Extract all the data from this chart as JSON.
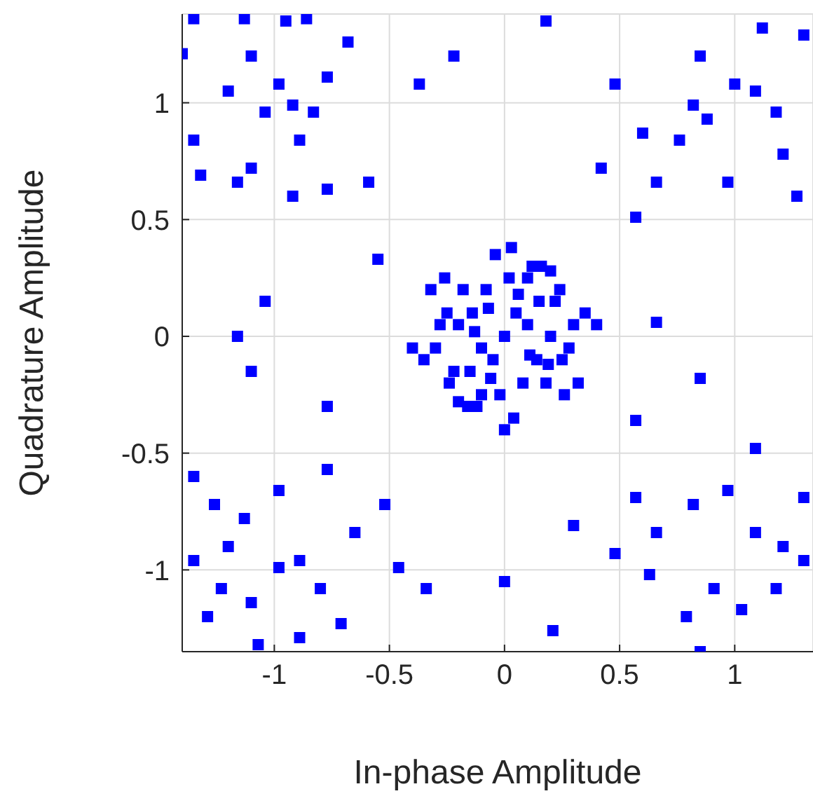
{
  "chart_data": {
    "type": "scatter",
    "xlabel": "In-phase Amplitude",
    "ylabel": "Quadrature Amplitude",
    "xlim": [
      -1.4,
      1.34
    ],
    "ylim": [
      -1.35,
      1.38
    ],
    "xticks": [
      -1,
      -0.5,
      0,
      0.5,
      1
    ],
    "yticks": [
      -1,
      -0.5,
      0,
      0.5,
      1
    ],
    "grid": true,
    "marker": "square",
    "series": [
      {
        "color": "#0000ff",
        "x": [
          -1.35,
          -1.13,
          -0.95,
          -0.86,
          -1.4,
          -1.2,
          -1.1,
          -0.98,
          -0.92,
          -0.83,
          -0.77,
          -0.68,
          -0.89,
          -1.32,
          -1.16,
          -1.1,
          -0.92,
          -0.77,
          -1.35,
          -1.04,
          1.0,
          1.09,
          1.18,
          0.88,
          0.76,
          0.82,
          1.12,
          1.3,
          0.6,
          0.66,
          0.97,
          1.21,
          0.48,
          1.27,
          0.42,
          0.85,
          -1.35,
          -1.23,
          -1.1,
          -0.98,
          -0.89,
          -0.8,
          -1.29,
          -1.07,
          -0.89,
          -0.71,
          -1.26,
          -1.13,
          -0.77,
          -0.98,
          -1.35,
          -0.65,
          -1.2,
          0.82,
          0.97,
          1.09,
          1.21,
          1.3,
          0.91,
          0.79,
          1.03,
          1.18,
          0.85,
          0.63,
          0.66,
          1.09,
          0.48,
          0.3,
          1.3,
          -0.55,
          -1.04,
          -1.16,
          -1.1,
          -0.77,
          -0.37,
          -0.22,
          0.18,
          -0.59,
          0.57,
          0.66,
          0.85,
          0.57,
          0.0,
          -0.34,
          0.21,
          -0.46,
          0.57,
          -0.52,
          0.0,
          0.05,
          -0.05,
          0.1,
          -0.1,
          0.15,
          -0.15,
          0.2,
          -0.2,
          0.25,
          -0.25,
          0.3,
          -0.3,
          0.02,
          -0.02,
          0.08,
          -0.08,
          0.12,
          -0.12,
          0.18,
          -0.18,
          0.22,
          -0.22,
          0.28,
          -0.28,
          0.35,
          -0.35,
          0.04,
          -0.04,
          0.1,
          -0.1,
          0.16,
          -0.16,
          0.24,
          -0.24,
          0.32,
          -0.32,
          0.06,
          -0.06,
          0.14,
          -0.14,
          0.2,
          -0.2,
          0.26,
          -0.26,
          0.4,
          -0.4,
          0.0,
          0.03,
          -0.07,
          0.11,
          -0.13,
          0.19
        ],
        "values": [
          1.36,
          1.36,
          1.35,
          1.36,
          1.21,
          1.05,
          1.2,
          1.08,
          0.99,
          0.96,
          1.11,
          1.26,
          0.84,
          0.69,
          0.66,
          0.72,
          0.6,
          0.63,
          0.84,
          0.96,
          1.08,
          1.05,
          0.96,
          0.93,
          0.84,
          0.99,
          1.32,
          1.29,
          0.87,
          0.66,
          0.66,
          0.78,
          1.08,
          0.6,
          0.72,
          1.2,
          -0.96,
          -1.08,
          -1.14,
          -0.99,
          -0.96,
          -1.08,
          -1.2,
          -1.32,
          -1.29,
          -1.23,
          -0.72,
          -0.78,
          -0.57,
          -0.66,
          -0.6,
          -0.84,
          -0.9,
          -0.72,
          -0.66,
          -0.84,
          -0.9,
          -0.69,
          -1.08,
          -1.2,
          -1.17,
          -1.08,
          -1.35,
          -1.02,
          -0.84,
          -0.48,
          -0.93,
          -0.81,
          -0.96,
          0.33,
          0.15,
          0.0,
          -0.15,
          -0.3,
          1.08,
          1.2,
          1.35,
          0.66,
          0.51,
          0.06,
          -0.18,
          -0.36,
          -1.05,
          -1.08,
          -1.26,
          -0.99,
          -0.69,
          -0.72,
          0.0,
          0.1,
          -0.1,
          0.05,
          -0.05,
          0.15,
          -0.15,
          0.0,
          0.05,
          -0.1,
          0.1,
          0.05,
          -0.05,
          0.25,
          -0.25,
          -0.2,
          0.2,
          0.3,
          -0.3,
          -0.2,
          0.2,
          0.15,
          -0.15,
          -0.05,
          0.05,
          0.1,
          -0.1,
          -0.35,
          0.35,
          0.25,
          -0.25,
          0.3,
          -0.3,
          0.2,
          -0.2,
          -0.2,
          0.2,
          0.18,
          -0.18,
          -0.1,
          0.1,
          0.28,
          -0.28,
          -0.25,
          0.25,
          0.05,
          -0.05,
          -0.4,
          0.38,
          0.12,
          -0.08,
          0.02,
          -0.12
        ]
      }
    ]
  }
}
